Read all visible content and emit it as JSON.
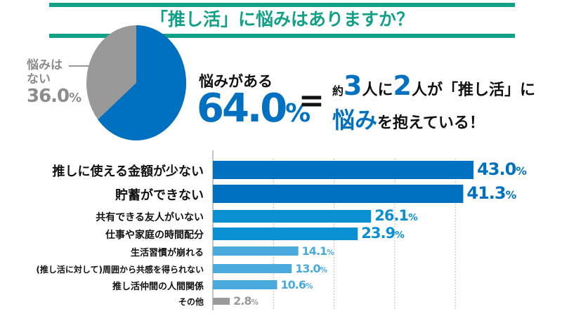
{
  "title": "「推し活」に悩みはありますか？",
  "pie": {
    "no_label_1": "悩みは",
    "no_label_2": "ない",
    "no_value": "36.0",
    "yes_label": "悩みがある",
    "yes_value": "64.0",
    "percent": "%",
    "equals": "=",
    "msg": {
      "a": "約",
      "three": "3",
      "b": "人に",
      "two": "2",
      "c": "人が「推し活」に",
      "d": "悩み",
      "e": "を抱えている！"
    }
  },
  "colors": {
    "title": "#12a086",
    "dark": "#0070c0",
    "mid": "#0a90d2",
    "light": "#4aa9dd",
    "gray": "#9a9a9a",
    "pie_gray": "#999999"
  },
  "chart_data": {
    "type": "bar",
    "orientation": "horizontal",
    "xlim": [
      0,
      50
    ],
    "grid": true,
    "categories": [
      "推しに使える金額が少ない",
      "貯蓄ができない",
      "共有できる友人がいない",
      "仕事や家庭の時間配分",
      "生活習慣が崩れる",
      "(推し活に対して)周囲から共感を得られない",
      "推し活仲間の人間関係",
      "その他"
    ],
    "values": [
      43.0,
      41.3,
      26.1,
      23.9,
      14.1,
      13.0,
      10.6,
      2.8
    ],
    "labels": [
      "43.0",
      "41.3",
      "26.1",
      "23.9",
      "14.1",
      "13.0",
      "10.6",
      "2.8"
    ],
    "tiers": [
      "dark",
      "dark",
      "mid",
      "mid",
      "light",
      "light",
      "light",
      "gray"
    ],
    "pie": {
      "type": "pie",
      "slices": [
        {
          "name": "悩みがある",
          "value": 64.0
        },
        {
          "name": "悩みはない",
          "value": 36.0
        }
      ]
    }
  }
}
